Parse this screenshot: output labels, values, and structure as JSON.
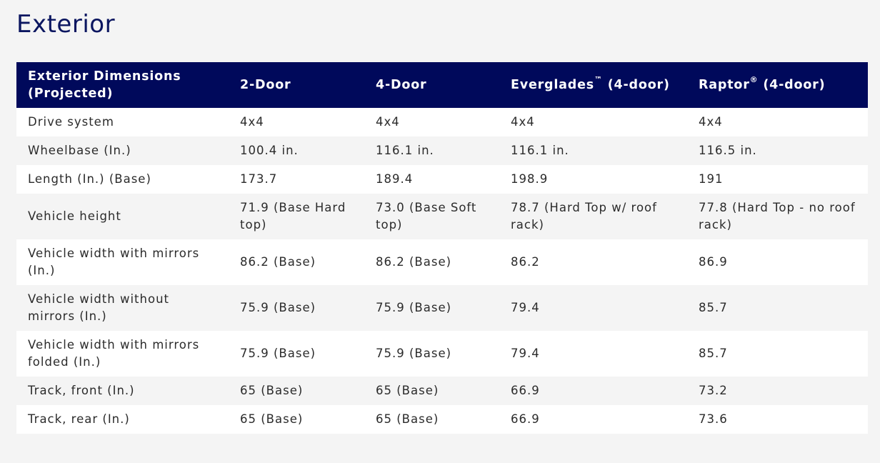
{
  "section": {
    "title": "Exterior"
  },
  "table": {
    "headers": [
      {
        "text": "Exterior Dimensions (Projected)"
      },
      {
        "text": "2-Door"
      },
      {
        "text": "4-Door"
      },
      {
        "text": "Everglades",
        "mark": "™",
        "rest": " (4-door)"
      },
      {
        "text": "Raptor",
        "mark": "®",
        "rest": " (4-door)"
      }
    ],
    "rows": [
      {
        "cells": [
          "Drive system",
          "4x4",
          "4x4",
          "4x4",
          "4x4"
        ]
      },
      {
        "cells": [
          "Wheelbase (In.)",
          "100.4 in.",
          "116.1 in.",
          "116.1 in.",
          "116.5 in."
        ]
      },
      {
        "cells": [
          "Length (In.) (Base)",
          "173.7",
          "189.4",
          "198.9",
          "191"
        ]
      },
      {
        "cells": [
          "Vehicle height",
          "71.9 (Base Hard top)",
          "73.0 (Base Soft top)",
          "78.7 (Hard Top w/ roof rack)",
          "77.8 (Hard Top - no roof rack)"
        ]
      },
      {
        "cells": [
          "Vehicle width with mirrors (In.)",
          "86.2 (Base)",
          "86.2 (Base)",
          "86.2",
          "86.9"
        ]
      },
      {
        "cells": [
          "Vehicle width without mirrors (In.)",
          "75.9 (Base)",
          "75.9 (Base)",
          "79.4",
          "85.7"
        ]
      },
      {
        "cells": [
          "Vehicle width with mirrors folded (In.)",
          "75.9 (Base)",
          "75.9 (Base)",
          "79.4",
          "85.7"
        ]
      },
      {
        "cells": [
          "Track, front (In.)",
          "65 (Base)",
          "65 (Base)",
          "66.9",
          "73.2"
        ]
      },
      {
        "cells": [
          "Track, rear (In.)",
          "65 (Base)",
          "65 (Base)",
          "66.9",
          "73.6"
        ]
      }
    ]
  },
  "colors": {
    "header_bg": "#00095b",
    "title": "#0b1660",
    "row_white": "#ffffff",
    "row_grey": "#f4f4f4",
    "text": "#2b2b2b"
  }
}
